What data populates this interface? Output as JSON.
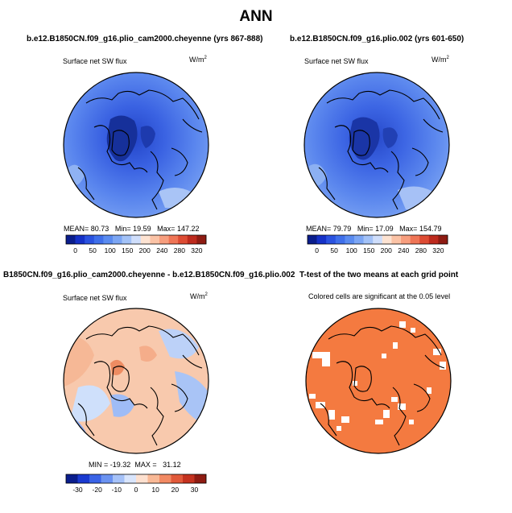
{
  "title": "ANN",
  "chart_data": [
    {
      "type": "heatmap",
      "title": "b.e12.B1850CN.f09_g16.plio_cam2000.cheyenne (yrs 867-888)",
      "subtitle": "Surface net SW flux",
      "units": {
        "base": "W/m",
        "sup": "2"
      },
      "stats": {
        "mean_label": "MEAN=",
        "mean": "80.73",
        "min_label": "Min=",
        "min": "19.59",
        "max_label": "Max=",
        "max": "147.22"
      },
      "colorbar": {
        "colors": [
          "#0a1d8c",
          "#1531c7",
          "#2a52e0",
          "#3f6fea",
          "#5a8bf0",
          "#7ca6f4",
          "#a3c2f7",
          "#cfdefb",
          "#fde3d2",
          "#fbc3a6",
          "#f79e7e",
          "#ef7556",
          "#dd4b33",
          "#bd2a1d",
          "#8e1b12"
        ],
        "ticks": [
          "0",
          "50",
          "100",
          "150",
          "200",
          "240",
          "280",
          "320"
        ]
      }
    },
    {
      "type": "heatmap",
      "title": "b.e12.B1850CN.f09_g16.plio.002 (yrs 601-650)",
      "subtitle": "Surface net SW flux",
      "units": {
        "base": "W/m",
        "sup": "2"
      },
      "stats": {
        "mean_label": "MEAN=",
        "mean": "79.79",
        "min_label": "Min=",
        "min": "17.09",
        "max_label": "Max=",
        "max": "154.79"
      },
      "colorbar": {
        "colors": [
          "#0a1d8c",
          "#1531c7",
          "#2a52e0",
          "#3f6fea",
          "#5a8bf0",
          "#7ca6f4",
          "#a3c2f7",
          "#cfdefb",
          "#fde3d2",
          "#fbc3a6",
          "#f79e7e",
          "#ef7556",
          "#dd4b33",
          "#bd2a1d",
          "#8e1b12"
        ],
        "ticks": [
          "0",
          "50",
          "100",
          "150",
          "200",
          "240",
          "280",
          "320"
        ]
      }
    },
    {
      "type": "heatmap",
      "title": "B1850CN.f09_g16.plio_cam2000.cheyenne - b.e12.B1850CN.f09_g16.plio.002",
      "subtitle": "Surface net SW flux",
      "units": {
        "base": "W/m",
        "sup": "2"
      },
      "stats": {
        "min_label": "MIN =",
        "min": "-19.32",
        "max_label": "MAX =",
        "max": "31.12"
      },
      "colorbar": {
        "colors": [
          "#0a1d8c",
          "#1a3ad0",
          "#3a63e6",
          "#6b93f1",
          "#a6c2f8",
          "#d9e5fc",
          "#fde0cf",
          "#f9b996",
          "#f28a63",
          "#e1593a",
          "#c4321f",
          "#8e1b12"
        ],
        "ticks": [
          "-30",
          "-20",
          "-10",
          "0",
          "10",
          "20",
          "30"
        ]
      }
    },
    {
      "type": "heatmap",
      "title": "T-test of the two means at each grid point",
      "subtitle": "Colored cells are significant at the 0.05 level",
      "colors": {
        "significant": "#f47a40",
        "not_significant": "#ffffff"
      }
    }
  ]
}
